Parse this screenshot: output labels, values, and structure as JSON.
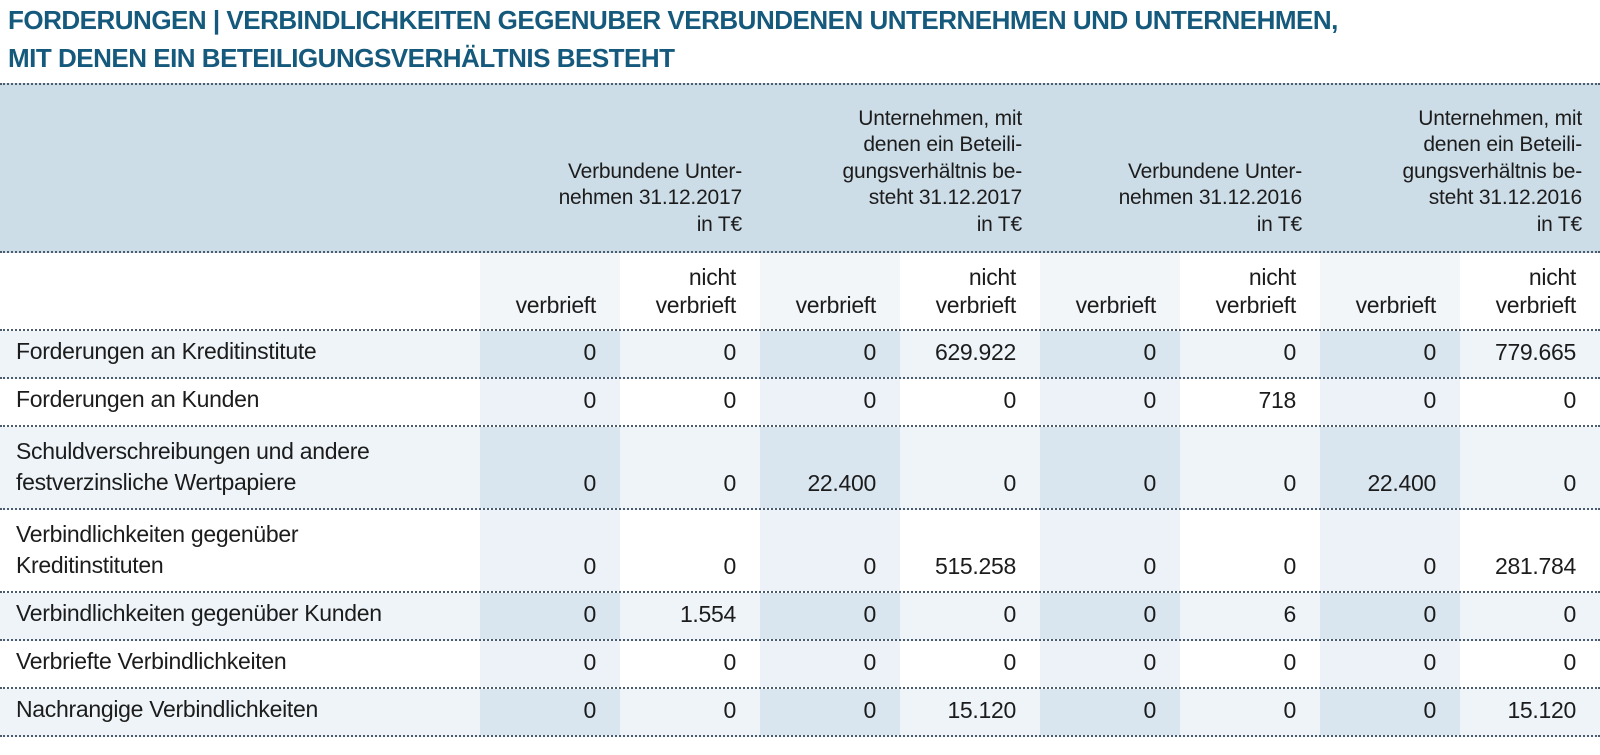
{
  "title": {
    "line1": "FORDERUNGEN | VERBINDLICHKEITEN GEGENUBER VERBUNDENEN UNTERNEHMEN UND UNTERNEHMEN,",
    "line2": "MIT DENEN EIN BETEILIGUNGSVERHÄLTNIS BESTEHT"
  },
  "colors": {
    "title_text": "#15597c",
    "header_band_bg": "#cddde8",
    "row_tint_bg": "#eef4f8",
    "verbrieft_col_strong": "#d9e6ef",
    "verbrieft_col_light": "#ecf2f7",
    "dotted_rule": "#4a5c6e"
  },
  "table": {
    "group_headers": [
      "Verbundene Unter-\nnehmen 31.12.2017\nin T€",
      "Unternehmen, mit\ndenen ein Beteili-\ngungsverhältnis be-\nsteht 31.12.2017\nin T€",
      "Verbundene Unter-\nnehmen 31.12.2016\nin T€",
      "Unternehmen, mit\ndenen ein Beteili-\ngungsverhältnis be-\nsteht 31.12.2016\nin T€"
    ],
    "sub_headers": [
      "verbrieft",
      "nicht\nverbrieft",
      "verbrieft",
      "nicht\nverbrieft",
      "verbrieft",
      "nicht\nverbrieft",
      "verbrieft",
      "nicht\nverbrieft"
    ],
    "rows": [
      {
        "label": "Forderungen an Kreditinstitute",
        "values": [
          "0",
          "0",
          "0",
          "629.922",
          "0",
          "0",
          "0",
          "779.665"
        ]
      },
      {
        "label": "Forderungen an Kunden",
        "values": [
          "0",
          "0",
          "0",
          "0",
          "0",
          "718",
          "0",
          "0"
        ]
      },
      {
        "label": "Schuldverschreibungen und andere\nfestverzinsliche Wertpapiere",
        "values": [
          "0",
          "0",
          "22.400",
          "0",
          "0",
          "0",
          "22.400",
          "0"
        ]
      },
      {
        "label": "Verbindlichkeiten gegenüber\nKreditinstituten",
        "values": [
          "0",
          "0",
          "0",
          "515.258",
          "0",
          "0",
          "0",
          "281.784"
        ]
      },
      {
        "label": "Verbindlichkeiten gegenüber Kunden",
        "values": [
          "0",
          "1.554",
          "0",
          "0",
          "0",
          "6",
          "0",
          "0"
        ]
      },
      {
        "label": "Verbriefte Verbindlichkeiten",
        "values": [
          "0",
          "0",
          "0",
          "0",
          "0",
          "0",
          "0",
          "0"
        ]
      },
      {
        "label": "Nachrangige Verbindlichkeiten",
        "values": [
          "0",
          "0",
          "0",
          "15.120",
          "0",
          "0",
          "0",
          "15.120"
        ]
      }
    ]
  }
}
